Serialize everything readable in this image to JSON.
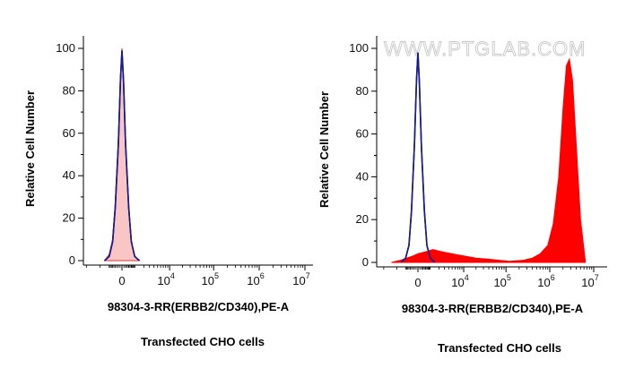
{
  "watermark": "WWW.PTGLAB.COM",
  "chart_data": [
    {
      "type": "area",
      "title": "",
      "xlabel": "98304-3-RR(ERBB2/CD340),PE-A",
      "ylabel": "Relative Cell Number",
      "caption": "Transfected CHO cells",
      "ylim": [
        0,
        105
      ],
      "y_ticks": [
        0,
        20,
        40,
        60,
        80,
        100
      ],
      "x_ticks": [
        {
          "base": "0",
          "exp": ""
        },
        {
          "base": "10",
          "exp": "4"
        },
        {
          "base": "10",
          "exp": "5"
        },
        {
          "base": "10",
          "exp": "6"
        },
        {
          "base": "10",
          "exp": "7"
        }
      ],
      "x_scale": "biexponential",
      "series": [
        {
          "role": "isotype control",
          "style": "line",
          "color": "#1a1a8c",
          "x": [
            -1400,
            -900,
            -600,
            -400,
            -200,
            -80,
            0,
            80,
            200,
            400,
            600,
            900,
            1400
          ],
          "y": [
            0,
            2,
            9,
            25,
            55,
            85,
            99,
            85,
            55,
            25,
            9,
            2,
            0
          ]
        },
        {
          "role": "antibody",
          "style": "filled",
          "color": "#f9c5c5",
          "edge": "#d43a3a",
          "x": [
            -1400,
            -900,
            -600,
            -400,
            -200,
            -80,
            0,
            80,
            200,
            400,
            600,
            900,
            1400
          ],
          "y": [
            0,
            3,
            10,
            27,
            57,
            87,
            100,
            86,
            56,
            26,
            9,
            2,
            0
          ]
        }
      ]
    },
    {
      "type": "area",
      "title": "",
      "xlabel": "98304-3-RR(ERBB2/CD340),PE-A",
      "ylabel": "Relative Cell Number",
      "caption": "Transfected CHO cells",
      "ylim": [
        0,
        105
      ],
      "y_ticks": [
        0,
        20,
        40,
        60,
        80,
        100
      ],
      "x_ticks": [
        {
          "base": "0",
          "exp": ""
        },
        {
          "base": "10",
          "exp": "4"
        },
        {
          "base": "10",
          "exp": "5"
        },
        {
          "base": "10",
          "exp": "6"
        },
        {
          "base": "10",
          "exp": "7"
        }
      ],
      "x_scale": "biexponential",
      "series": [
        {
          "role": "isotype control",
          "style": "line",
          "color": "#1a1a8c",
          "x": [
            -1400,
            -900,
            -600,
            -400,
            -200,
            -80,
            0,
            80,
            200,
            400,
            600,
            900,
            1400
          ],
          "y": [
            0,
            2,
            8,
            24,
            55,
            85,
            98,
            84,
            54,
            24,
            8,
            2,
            0
          ]
        },
        {
          "role": "antibody",
          "style": "filled",
          "color": "#ff0000",
          "edge": "#ff0000",
          "x": [
            -3000,
            -1500,
            -800,
            -300,
            0,
            500,
            1200,
            2500,
            5000,
            10000,
            20000,
            40000,
            70000,
            120000,
            250000,
            400000,
            600000,
            900000,
            1200000,
            1600000,
            2000000,
            2400000,
            2800000,
            3300000,
            4000000,
            5000000,
            6500000
          ],
          "y": [
            0,
            1,
            2,
            3,
            4,
            5,
            6,
            5,
            4,
            3,
            2,
            1.5,
            1,
            0.5,
            1,
            2,
            4,
            8,
            18,
            40,
            72,
            92,
            95,
            85,
            55,
            20,
            0
          ]
        }
      ]
    }
  ]
}
